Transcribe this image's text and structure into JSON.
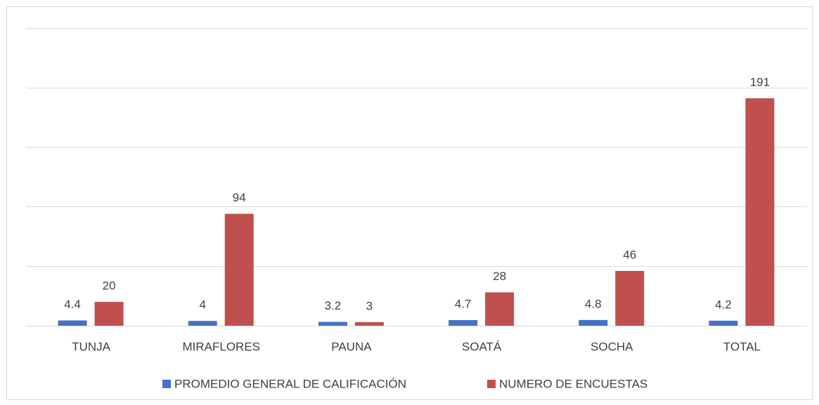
{
  "chart_data": {
    "type": "bar",
    "categories": [
      "TUNJA",
      "MIRAFLORES",
      "PAUNA",
      "SOATÁ",
      "SOCHA",
      "TOTAL"
    ],
    "series": [
      {
        "name": "PROMEDIO GENERAL DE  CALIFICACIÓN",
        "color": "#4472c4",
        "values": [
          4.4,
          4,
          3.2,
          4.7,
          4.8,
          4.2
        ]
      },
      {
        "name": "NUMERO DE  ENCUESTAS",
        "color": "#c0504d",
        "values": [
          20,
          94,
          3,
          28,
          46,
          191
        ]
      }
    ],
    "ylim": [
      0,
      250
    ],
    "yticks": [
      0,
      50,
      100,
      150,
      200,
      250
    ],
    "grid": true,
    "legend": "bottom"
  }
}
